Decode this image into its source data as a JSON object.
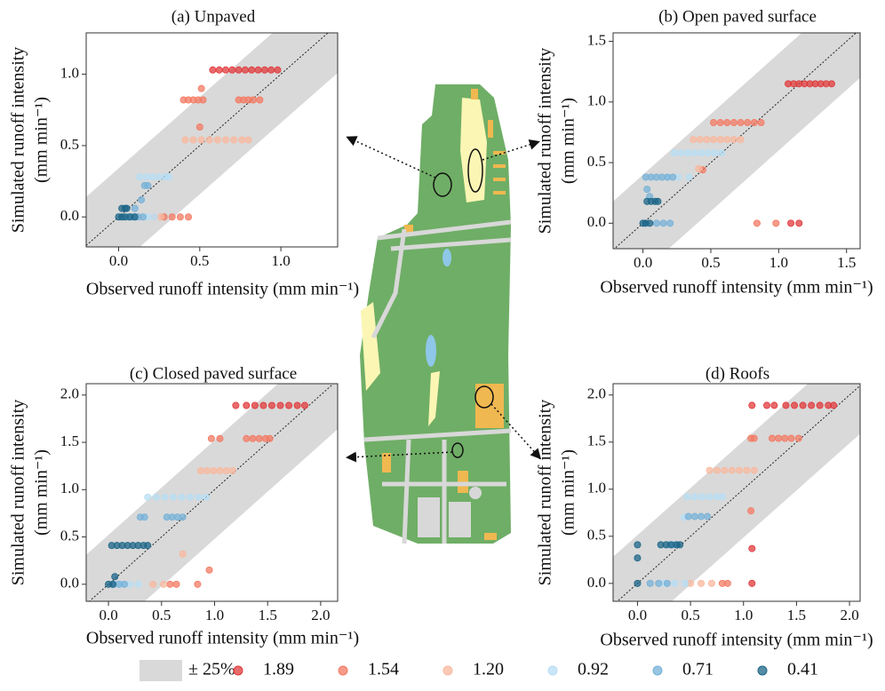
{
  "chart_data": [
    {
      "type": "scatter",
      "title": "(a) Unpaved",
      "xlabel": "Observed runoff intensity (mm min⁻¹)",
      "ylabel": [
        "Simulated runoff intensity",
        "(mm min⁻¹)"
      ],
      "xlim": [
        -0.2,
        1.35
      ],
      "ylim": [
        -0.21,
        1.29
      ],
      "xticks": [
        {
          "value": 0,
          "label": "0.0"
        },
        0.5,
        {
          "value": 1,
          "label": "1.0"
        }
      ],
      "yticks": [
        {
          "value": 0,
          "label": "0.0"
        },
        0.5,
        {
          "value": 1,
          "label": "1.0"
        }
      ],
      "series": [
        {
          "name": "1.89",
          "color": "#e0393b",
          "x": [
            0.58,
            0.62,
            0.66,
            0.7,
            0.74,
            0.78,
            0.82,
            0.86,
            0.9,
            0.94,
            0.98
          ],
          "values": [
            1.03,
            1.03,
            1.03,
            1.03,
            1.03,
            1.03,
            1.03,
            1.03,
            1.03,
            1.03,
            1.03
          ]
        },
        {
          "name": "1.54",
          "color": "#f37a63",
          "x": [
            0.4,
            0.43,
            0.46,
            0.49,
            0.52,
            0.51,
            0.5,
            0.74,
            0.77,
            0.8,
            0.83,
            0.87,
            0.28,
            0.33,
            0.38,
            0.43
          ],
          "values": [
            0.82,
            0.82,
            0.82,
            0.82,
            0.82,
            0.9,
            0.63,
            0.82,
            0.82,
            0.82,
            0.82,
            0.82,
            0,
            0,
            0,
            0
          ]
        },
        {
          "name": "1.20",
          "color": "#f8b89e",
          "x": [
            0.41,
            0.46,
            0.51,
            0.56,
            0.61,
            0.66,
            0.71,
            0.76,
            0.8,
            0.22,
            0.26
          ],
          "values": [
            0.54,
            0.54,
            0.54,
            0.54,
            0.54,
            0.54,
            0.54,
            0.54,
            0.54,
            0,
            0
          ]
        },
        {
          "name": "0.92",
          "color": "#b7def4",
          "x": [
            0.13,
            0.17,
            0.21,
            0.25,
            0.29,
            0.31,
            0.18,
            0.22
          ],
          "values": [
            0.28,
            0.28,
            0.28,
            0.28,
            0.28,
            0.28,
            0,
            0
          ]
        },
        {
          "name": "0.71",
          "color": "#76b1d8",
          "x": [
            0.16,
            0.18,
            0.06,
            0.09,
            0.12,
            0.15,
            0.14,
            0.1
          ],
          "values": [
            0.22,
            0.22,
            0,
            0,
            0,
            0,
            0.12,
            0.06
          ]
        },
        {
          "name": "0.41",
          "color": "#1d6688",
          "x": [
            0.02,
            0.04,
            0.05,
            0.0,
            0.02,
            0.04,
            0.07,
            0.1
          ],
          "values": [
            0.06,
            0.06,
            0.06,
            0,
            0,
            0,
            0,
            0
          ]
        }
      ]
    },
    {
      "type": "scatter",
      "title": "(b) Open paved surface",
      "xlabel": "Observed runoff intensity (mm min⁻¹)",
      "ylabel": [
        "Simulated runoff intensity",
        "(mm min⁻¹)"
      ],
      "xlim": [
        -0.22,
        1.6
      ],
      "ylim": [
        -0.21,
        1.57
      ],
      "xticks": [
        {
          "value": 0,
          "label": "0.0"
        },
        0.5,
        {
          "value": 1,
          "label": "1.0"
        },
        1.5
      ],
      "yticks": [
        {
          "value": 0,
          "label": "0.0"
        },
        0.5,
        {
          "value": 1,
          "label": "1.0"
        },
        1.5
      ],
      "series": [
        {
          "name": "1.89",
          "color": "#e0393b",
          "x": [
            1.07,
            1.11,
            1.15,
            1.19,
            1.23,
            1.27,
            1.31,
            1.35,
            1.39,
            1.09,
            1.15
          ],
          "values": [
            1.15,
            1.15,
            1.15,
            1.15,
            1.15,
            1.15,
            1.15,
            1.15,
            1.15,
            0,
            0
          ]
        },
        {
          "name": "1.54",
          "color": "#f37a63",
          "x": [
            0.52,
            0.57,
            0.62,
            0.67,
            0.72,
            0.77,
            0.82,
            0.87,
            0.84,
            0.98,
            0.44
          ],
          "values": [
            0.83,
            0.83,
            0.83,
            0.83,
            0.83,
            0.83,
            0.83,
            0.83,
            0,
            0,
            0.44
          ]
        },
        {
          "name": "1.20",
          "color": "#f8b89e",
          "x": [
            0.37,
            0.42,
            0.47,
            0.52,
            0.57,
            0.62,
            0.67,
            0.72,
            0.41
          ],
          "values": [
            0.69,
            0.69,
            0.69,
            0.69,
            0.69,
            0.69,
            0.69,
            0.69,
            0.45
          ]
        },
        {
          "name": "0.92",
          "color": "#b7def4",
          "x": [
            0.23,
            0.28,
            0.33,
            0.38,
            0.43,
            0.48,
            0.53,
            0.58,
            0.18,
            0.26,
            0.34
          ],
          "values": [
            0.58,
            0.58,
            0.58,
            0.58,
            0.58,
            0.58,
            0.58,
            0.58,
            0.38,
            0.38,
            0.38
          ]
        },
        {
          "name": "0.71",
          "color": "#76b1d8",
          "x": [
            0.02,
            0.06,
            0.1,
            0.14,
            0.18,
            0.22,
            0.03,
            0.05,
            0.1,
            0.15,
            0.2
          ],
          "values": [
            0.38,
            0.38,
            0.38,
            0.38,
            0.38,
            0.38,
            0.28,
            0.22,
            0,
            0,
            0
          ]
        },
        {
          "name": "0.41",
          "color": "#1d6688",
          "x": [
            0.03,
            0.06,
            0.09,
            0.11,
            0.0,
            0.02,
            0.05
          ],
          "values": [
            0.18,
            0.18,
            0.18,
            0.18,
            0,
            0,
            0
          ]
        }
      ]
    },
    {
      "type": "scatter",
      "title": "(c) Closed paved surface",
      "xlabel": "Observed runoff intensity (mm min⁻¹)",
      "ylabel": [
        "Simulated runoff intensity",
        "(mm min⁻¹)"
      ],
      "xlim": [
        -0.21,
        2.16
      ],
      "ylim": [
        -0.18,
        2.12
      ],
      "xticks": [
        {
          "value": 0,
          "label": "0.0"
        },
        0.5,
        {
          "value": 1,
          "label": "1.0"
        },
        1.5,
        {
          "value": 2,
          "label": "2.0"
        }
      ],
      "yticks": [
        {
          "value": 0,
          "label": "0.0"
        },
        0.5,
        {
          "value": 1,
          "label": "1.0"
        },
        1.5,
        {
          "value": 2,
          "label": "2.0"
        }
      ],
      "series": [
        {
          "name": "1.89",
          "color": "#e0393b",
          "x": [
            1.2,
            1.3,
            1.38,
            1.46,
            1.54,
            1.62,
            1.7,
            1.78,
            1.85
          ],
          "values": [
            1.89,
            1.89,
            1.89,
            1.89,
            1.89,
            1.89,
            1.89,
            1.89,
            1.89
          ]
        },
        {
          "name": "1.54",
          "color": "#f37a63",
          "x": [
            0.97,
            1.05,
            1.3,
            1.36,
            1.42,
            1.48,
            1.52,
            0.95,
            0.84,
            0.58,
            0.64
          ],
          "values": [
            1.54,
            1.54,
            1.54,
            1.54,
            1.54,
            1.54,
            1.54,
            0.15,
            0,
            0,
            0
          ]
        },
        {
          "name": "1.20",
          "color": "#f8b89e",
          "x": [
            0.87,
            0.93,
            0.99,
            1.05,
            1.11,
            1.17,
            0.7,
            0.42,
            0.52
          ],
          "values": [
            1.2,
            1.2,
            1.2,
            1.2,
            1.2,
            1.2,
            0.32,
            0,
            0
          ]
        },
        {
          "name": "0.92",
          "color": "#b7def4",
          "x": [
            0.37,
            0.45,
            0.53,
            0.61,
            0.69,
            0.77,
            0.85,
            0.92,
            0.12,
            0.2,
            0.28
          ],
          "values": [
            0.92,
            0.92,
            0.92,
            0.92,
            0.92,
            0.92,
            0.92,
            0.92,
            0,
            0,
            0
          ]
        },
        {
          "name": "0.71",
          "color": "#76b1d8",
          "x": [
            0.3,
            0.34,
            0.55,
            0.6,
            0.65,
            0.7,
            0.05,
            0.1,
            0.15
          ],
          "values": [
            0.71,
            0.71,
            0.71,
            0.71,
            0.71,
            0.71,
            0,
            0,
            0
          ]
        },
        {
          "name": "0.41",
          "color": "#1d6688",
          "x": [
            0.03,
            0.08,
            0.13,
            0.18,
            0.23,
            0.28,
            0.33,
            0.37,
            0.06,
            0.0,
            0.04
          ],
          "values": [
            0.41,
            0.41,
            0.41,
            0.41,
            0.41,
            0.41,
            0.41,
            0.41,
            0.08,
            0,
            0
          ]
        }
      ]
    },
    {
      "type": "scatter",
      "title": "(d) Roofs",
      "xlabel": "Observed runoff intensity (mm min⁻¹)",
      "ylabel": [
        "Simulated runoff intensity",
        "(mm min⁻¹)"
      ],
      "xlim": [
        -0.23,
        2.1
      ],
      "ylim": [
        -0.19,
        2.12
      ],
      "xticks": [
        {
          "value": 0,
          "label": "0.0"
        },
        0.5,
        {
          "value": 1,
          "label": "1.0"
        },
        1.5,
        {
          "value": 2,
          "label": "2.0"
        }
      ],
      "yticks": [
        {
          "value": 0,
          "label": "0.0"
        },
        0.5,
        {
          "value": 1,
          "label": "1.0"
        },
        1.5,
        {
          "value": 2,
          "label": "2.0"
        }
      ],
      "series": [
        {
          "name": "1.89",
          "color": "#e0393b",
          "x": [
            1.08,
            1.22,
            1.29,
            1.4,
            1.48,
            1.56,
            1.64,
            1.72,
            1.8,
            1.85,
            1.08,
            1.08
          ],
          "values": [
            1.89,
            1.89,
            1.89,
            1.89,
            1.89,
            1.89,
            1.89,
            1.89,
            1.89,
            1.89,
            0.37,
            0
          ]
        },
        {
          "name": "1.54",
          "color": "#f37a63",
          "x": [
            1.07,
            1.1,
            1.27,
            1.33,
            1.39,
            1.45,
            1.52,
            1.07,
            0.8,
            0.85
          ],
          "values": [
            1.54,
            1.54,
            1.54,
            1.54,
            1.54,
            1.54,
            1.54,
            0.77,
            0,
            0
          ]
        },
        {
          "name": "1.20",
          "color": "#f8b89e",
          "x": [
            0.68,
            0.75,
            0.82,
            0.89,
            0.96,
            1.03,
            1.1,
            0.5,
            0.6,
            0.7
          ],
          "values": [
            1.2,
            1.2,
            1.2,
            1.2,
            1.2,
            1.2,
            1.2,
            0,
            0,
            0
          ]
        },
        {
          "name": "0.92",
          "color": "#b7def4",
          "x": [
            0.47,
            0.54,
            0.61,
            0.68,
            0.75,
            0.8,
            0.44,
            0.25,
            0.35,
            0.45
          ],
          "values": [
            0.92,
            0.92,
            0.92,
            0.92,
            0.92,
            0.92,
            0.7,
            0,
            0,
            0
          ]
        },
        {
          "name": "0.71",
          "color": "#76b1d8",
          "x": [
            0.48,
            0.54,
            0.6,
            0.66,
            0.3,
            0.36,
            0.12,
            0.2,
            0.28
          ],
          "values": [
            0.71,
            0.71,
            0.71,
            0.71,
            0.41,
            0.41,
            0,
            0,
            0
          ]
        },
        {
          "name": "0.41",
          "color": "#1d6688",
          "x": [
            0.22,
            0.27,
            0.32,
            0.37,
            0.4,
            0.0,
            0.0,
            0.0
          ],
          "values": [
            0.41,
            0.41,
            0.41,
            0.41,
            0.41,
            0.41,
            0.27,
            0
          ]
        }
      ]
    }
  ],
  "legend": {
    "band_label": "± 25%"
  }
}
